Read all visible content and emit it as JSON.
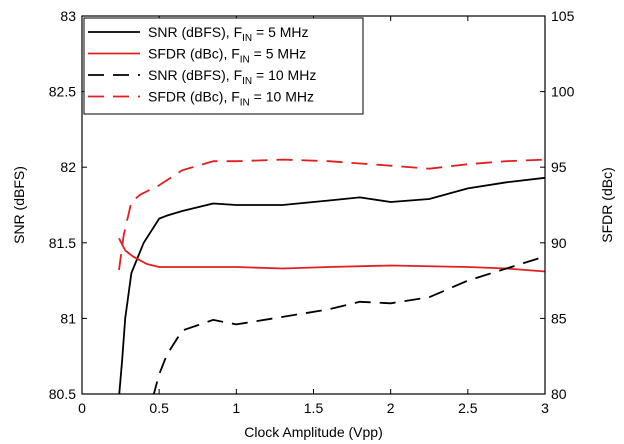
{
  "chart_data": {
    "type": "line",
    "xlabel": "Clock Amplitude (Vpp)",
    "ylabel_left": "SNR (dBFS)",
    "ylabel_right": "SFDR (dBc)",
    "xlim": [
      0,
      3
    ],
    "ylim_left": [
      80.5,
      83
    ],
    "ylim_right": [
      80,
      105
    ],
    "x_ticks": [
      "0",
      "0.5",
      "1",
      "1.5",
      "2",
      "2.5",
      "3"
    ],
    "y_left_ticks": [
      "80.5",
      "81",
      "81.5",
      "82",
      "82.5",
      "83"
    ],
    "y_right_ticks": [
      "80",
      "85",
      "90",
      "95",
      "100",
      "105"
    ],
    "grid": false,
    "legend_position": "top-left",
    "series": [
      {
        "name": "SNR (dBFS), F_IN = 5 MHz",
        "legend": {
          "pre": "SNR (dBFS), F",
          "sub": "IN",
          "post": " = 5 MHz"
        },
        "axis": "left",
        "color": "#000000",
        "dash": "solid",
        "x": [
          0.24,
          0.26,
          0.28,
          0.32,
          0.4,
          0.5,
          0.55,
          0.65,
          0.85,
          1.0,
          1.3,
          1.6,
          1.8,
          2.0,
          2.25,
          2.5,
          2.75,
          3.0
        ],
        "y": [
          80.48,
          80.72,
          81.0,
          81.3,
          81.5,
          81.66,
          81.68,
          81.71,
          81.76,
          81.75,
          81.75,
          81.78,
          81.8,
          81.77,
          81.79,
          81.86,
          81.9,
          81.93
        ]
      },
      {
        "name": "SFDR (dBc), F_IN = 5 MHz",
        "legend": {
          "pre": "SFDR (dBc), F",
          "sub": "IN",
          "post": " = 5 MHz"
        },
        "axis": "right",
        "color": "#e41e1e",
        "dash": "solid",
        "x": [
          0.24,
          0.28,
          0.33,
          0.42,
          0.5,
          0.65,
          0.85,
          1.0,
          1.3,
          1.6,
          2.0,
          2.5,
          2.75,
          3.0
        ],
        "y": [
          90.3,
          89.5,
          89.1,
          88.6,
          88.4,
          88.4,
          88.4,
          88.4,
          88.3,
          88.4,
          88.5,
          88.4,
          88.3,
          88.1
        ]
      },
      {
        "name": "SNR (dBFS), F_IN = 10 MHz",
        "legend": {
          "pre": "SNR (dBFS), F",
          "sub": "IN",
          "post": " = 10 MHz"
        },
        "axis": "left",
        "color": "#000000",
        "dash": "dashed",
        "x": [
          0.46,
          0.5,
          0.55,
          0.65,
          0.85,
          1.0,
          1.3,
          1.6,
          1.8,
          2.0,
          2.25,
          2.5,
          2.75,
          3.0
        ],
        "y": [
          80.48,
          80.63,
          80.76,
          80.92,
          80.99,
          80.96,
          81.01,
          81.06,
          81.11,
          81.1,
          81.14,
          81.25,
          81.33,
          81.41
        ]
      },
      {
        "name": "SFDR (dBc), F_IN = 10 MHz",
        "legend": {
          "pre": "SFDR (dBc), F",
          "sub": "IN",
          "post": " = 10 MHz"
        },
        "axis": "right",
        "color": "#e41e1e",
        "dash": "dashed",
        "x": [
          0.24,
          0.27,
          0.32,
          0.38,
          0.5,
          0.65,
          0.85,
          1.0,
          1.3,
          1.6,
          2.0,
          2.25,
          2.5,
          2.75,
          3.0
        ],
        "y": [
          88.2,
          90.5,
          92.7,
          93.2,
          93.8,
          94.8,
          95.4,
          95.4,
          95.5,
          95.4,
          95.1,
          94.9,
          95.2,
          95.4,
          95.5
        ]
      }
    ]
  }
}
